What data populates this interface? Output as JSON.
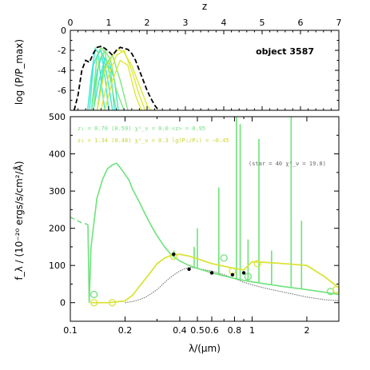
{
  "chart_data": [
    {
      "type": "line",
      "panel": "top",
      "title": "object 3587",
      "xlabel": "z",
      "ylabel": "log (P/P_max)",
      "xlim": [
        0,
        7
      ],
      "ylim": [
        -8,
        0
      ],
      "xticks": [
        0,
        1,
        2,
        3,
        4,
        5,
        6,
        7
      ],
      "yticks": [
        0,
        -2,
        -4,
        -6
      ],
      "colors": {
        "envelope": "#000000",
        "cyan": "#3ee6d0",
        "green": "#7de87d",
        "yellow": "#dde83a"
      },
      "series": [
        {
          "color": "cyan",
          "x": [
            0.45,
            0.55,
            0.65,
            0.72,
            0.8,
            0.9
          ],
          "y": [
            -8,
            -4.5,
            -1.8,
            -2.2,
            -5,
            -8
          ]
        },
        {
          "color": "cyan",
          "x": [
            0.5,
            0.6,
            0.7,
            0.8,
            0.9,
            1.0
          ],
          "y": [
            -8,
            -3.5,
            -2.5,
            -2.0,
            -4.5,
            -8
          ]
        },
        {
          "color": "cyan",
          "x": [
            0.55,
            0.7,
            0.85,
            1.0,
            1.1
          ],
          "y": [
            -8,
            -4,
            -2.3,
            -5.5,
            -8
          ]
        },
        {
          "color": "cyan",
          "x": [
            0.6,
            0.75,
            0.9,
            1.05,
            1.15
          ],
          "y": [
            -8,
            -5,
            -2.8,
            -4.0,
            -8
          ]
        },
        {
          "color": "cyan",
          "x": [
            0.7,
            0.85,
            1.0,
            1.15,
            1.25
          ],
          "y": [
            -8,
            -4.0,
            -3.0,
            -5.0,
            -8
          ]
        },
        {
          "color": "green",
          "x": [
            0.55,
            0.7,
            0.8,
            0.9,
            1.05,
            1.2
          ],
          "y": [
            -8,
            -2.5,
            -1.7,
            -2.2,
            -5,
            -8
          ]
        },
        {
          "color": "green",
          "x": [
            0.6,
            0.75,
            0.9,
            1.05,
            1.2,
            1.4
          ],
          "y": [
            -8,
            -3.0,
            -2.0,
            -3.0,
            -6,
            -8
          ]
        },
        {
          "color": "green",
          "x": [
            0.7,
            0.9,
            1.1,
            1.3,
            1.5
          ],
          "y": [
            -8,
            -3.5,
            -2.5,
            -5.0,
            -8
          ]
        },
        {
          "color": "yellow",
          "x": [
            0.7,
            0.9,
            1.1,
            1.25,
            1.4,
            1.6,
            1.8,
            2.0,
            2.1
          ],
          "y": [
            -8,
            -4.0,
            -2.5,
            -1.9,
            -2.2,
            -3.5,
            -5.5,
            -7.5,
            -8
          ]
        },
        {
          "color": "yellow",
          "x": [
            0.8,
            1.0,
            1.2,
            1.4,
            1.6,
            1.8,
            1.95
          ],
          "y": [
            -8,
            -4.5,
            -2.5,
            -2.0,
            -4.0,
            -6.5,
            -8
          ]
        },
        {
          "color": "yellow",
          "x": [
            0.9,
            1.1,
            1.3,
            1.5,
            1.7,
            1.85
          ],
          "y": [
            -8,
            -5.0,
            -3.0,
            -3.5,
            -6.5,
            -8
          ]
        }
      ],
      "envelope": {
        "x": [
          0.1,
          0.2,
          0.3,
          0.4,
          0.5,
          0.6,
          0.7,
          0.8,
          0.9,
          1.0,
          1.1,
          1.2,
          1.3,
          1.4,
          1.5,
          1.6,
          1.7,
          1.8,
          1.9,
          2.0,
          2.1,
          2.2,
          2.3
        ],
        "y": [
          -8,
          -6.5,
          -4.0,
          -3.0,
          -3.2,
          -2.3,
          -1.7,
          -1.6,
          -1.8,
          -2.1,
          -2.5,
          -2.0,
          -1.7,
          -1.8,
          -1.9,
          -2.3,
          -3.0,
          -4.0,
          -5.0,
          -6.0,
          -6.8,
          -7.5,
          -8
        ]
      }
    },
    {
      "type": "line",
      "panel": "bottom",
      "xlabel": "λ/(μm)",
      "ylabel": "f_λ / (10⁻²⁰ ergs/s/cm²/Å)",
      "xscale": "log",
      "xlim": [
        0.1,
        3.0
      ],
      "ylim": [
        -50,
        500
      ],
      "xticks": [
        0.1,
        0.2,
        0.4,
        0.5,
        0.6,
        0.8,
        1,
        2
      ],
      "xtick_labels": [
        "0.1",
        "0.2",
        "0.4",
        "0.5",
        "0.6",
        "0.8",
        "1",
        "2"
      ],
      "yticks": [
        0,
        100,
        200,
        300,
        400,
        500
      ],
      "colors": {
        "green_template": "#6de37a",
        "yellow_template": "#d9e43a",
        "star": "#808080",
        "photometry": "#000000"
      },
      "annotations": {
        "line1_green": "z₁ = 0.70 (0.59)  χ²_ν = 0.0   <z> = 0.95",
        "line2_yellow": "z₂ = 1.34 (0.48)  χ²_ν = 0.3   lg(P₁/P₂) = −0.45",
        "star_note": "(star = 40  χ²_ν = 19.8)"
      },
      "green_template": {
        "x": [
          0.0912,
          0.1,
          0.115,
          0.125,
          0.127,
          0.13,
          0.14,
          0.15,
          0.16,
          0.17,
          0.18,
          0.19,
          0.2,
          0.21,
          0.22,
          0.24,
          0.26,
          0.28,
          0.3,
          0.33,
          0.36,
          0.4,
          0.45,
          0.5,
          0.55,
          0.6,
          0.7,
          0.8,
          0.9,
          1.0,
          1.2,
          1.5,
          2.0,
          2.5,
          3.0
        ],
        "y": [
          240,
          230,
          215,
          210,
          0,
          150,
          280,
          330,
          360,
          370,
          375,
          360,
          345,
          330,
          305,
          270,
          235,
          205,
          180,
          150,
          128,
          112,
          100,
          92,
          86,
          80,
          72,
          65,
          60,
          56,
          50,
          43,
          35,
          28,
          22
        ],
        "emission_lines": [
          {
            "x": 0.372,
            "peak": 140
          },
          {
            "x": 0.48,
            "peak": 150
          },
          {
            "x": 0.5,
            "peak": 200
          },
          {
            "x": 0.656,
            "peak": 310
          },
          {
            "x": 0.82,
            "peak": 500
          },
          {
            "x": 0.86,
            "peak": 480
          },
          {
            "x": 0.95,
            "peak": 170
          },
          {
            "x": 1.09,
            "peak": 440
          },
          {
            "x": 1.28,
            "peak": 140
          },
          {
            "x": 1.64,
            "peak": 500
          },
          {
            "x": 1.87,
            "peak": 220
          }
        ],
        "photometry_model_points": [
          {
            "x": 0.135,
            "y": 22
          },
          {
            "x": 0.7,
            "y": 120
          },
          {
            "x": 0.95,
            "y": 70
          },
          {
            "x": 2.7,
            "y": 30
          }
        ]
      },
      "yellow_template": {
        "x": [
          0.13,
          0.14,
          0.16,
          0.18,
          0.2,
          0.22,
          0.25,
          0.28,
          0.3,
          0.33,
          0.36,
          0.4,
          0.45,
          0.5,
          0.6,
          0.7,
          0.8,
          0.9,
          1.0,
          1.2,
          1.5,
          2.0,
          2.5,
          3.0
        ],
        "y": [
          0,
          0,
          0,
          2,
          5,
          20,
          55,
          85,
          105,
          120,
          128,
          130,
          125,
          118,
          105,
          98,
          92,
          88,
          110,
          108,
          105,
          100,
          70,
          40
        ],
        "photometry_model_points": [
          {
            "x": 0.135,
            "y": 0
          },
          {
            "x": 0.17,
            "y": 0
          },
          {
            "x": 0.37,
            "y": 125
          },
          {
            "x": 0.78,
            "y": 85
          },
          {
            "x": 1.07,
            "y": 105
          },
          {
            "x": 2.9,
            "y": 35
          }
        ]
      },
      "star_template": {
        "x": [
          0.2,
          0.22,
          0.24,
          0.26,
          0.28,
          0.3,
          0.32,
          0.34,
          0.36,
          0.38,
          0.4,
          0.43,
          0.46,
          0.5,
          0.55,
          0.6,
          0.7,
          0.8,
          0.9,
          1.0,
          1.2,
          1.5,
          2.0,
          2.5,
          3.0
        ],
        "y": [
          0,
          3,
          8,
          15,
          25,
          35,
          48,
          60,
          70,
          78,
          85,
          92,
          95,
          92,
          88,
          85,
          75,
          65,
          55,
          48,
          38,
          28,
          15,
          8,
          5
        ]
      },
      "photometry": {
        "x": [
          0.37,
          0.45,
          0.6,
          0.78,
          0.9
        ],
        "y": [
          130,
          90,
          80,
          75,
          80
        ]
      }
    }
  ]
}
